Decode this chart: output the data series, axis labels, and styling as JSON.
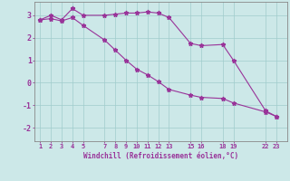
{
  "xlabel": "Windchill (Refroidissement éolien,°C)",
  "bg_color": "#cce8e8",
  "line_color": "#993399",
  "xtick_labels": [
    "1",
    "2",
    "3",
    "4",
    "5",
    "7",
    "8",
    "9",
    "10",
    "11",
    "12",
    "13",
    "15",
    "16",
    "18",
    "19",
    "22",
    "23"
  ],
  "xtick_positions": [
    1,
    2,
    3,
    4,
    5,
    7,
    8,
    9,
    10,
    11,
    12,
    13,
    15,
    16,
    18,
    19,
    22,
    23
  ],
  "ylim": [
    -2.6,
    3.6
  ],
  "yticks": [
    -2,
    -1,
    0,
    1,
    2,
    3
  ],
  "line1_x": [
    1,
    2,
    3,
    4,
    5,
    7,
    8,
    9,
    10,
    11,
    12,
    13,
    15,
    16,
    18,
    19,
    22,
    23
  ],
  "line1_y": [
    2.8,
    3.0,
    2.8,
    3.3,
    3.0,
    3.0,
    3.05,
    3.1,
    3.1,
    3.15,
    3.1,
    2.9,
    1.75,
    1.65,
    1.7,
    1.0,
    -1.25,
    -1.5
  ],
  "line2_x": [
    1,
    2,
    3,
    4,
    5,
    7,
    8,
    9,
    10,
    11,
    12,
    13,
    15,
    16,
    18,
    19,
    22,
    23
  ],
  "line2_y": [
    2.8,
    2.85,
    2.75,
    2.9,
    2.55,
    1.9,
    1.45,
    1.0,
    0.6,
    0.35,
    0.05,
    -0.3,
    -0.55,
    -0.65,
    -0.7,
    -0.9,
    -1.3,
    -1.5
  ],
  "grid_color": "#a0cccc",
  "tick_color": "#993399",
  "label_color": "#993399",
  "font_family": "monospace",
  "xlim": [
    0.5,
    24.0
  ]
}
